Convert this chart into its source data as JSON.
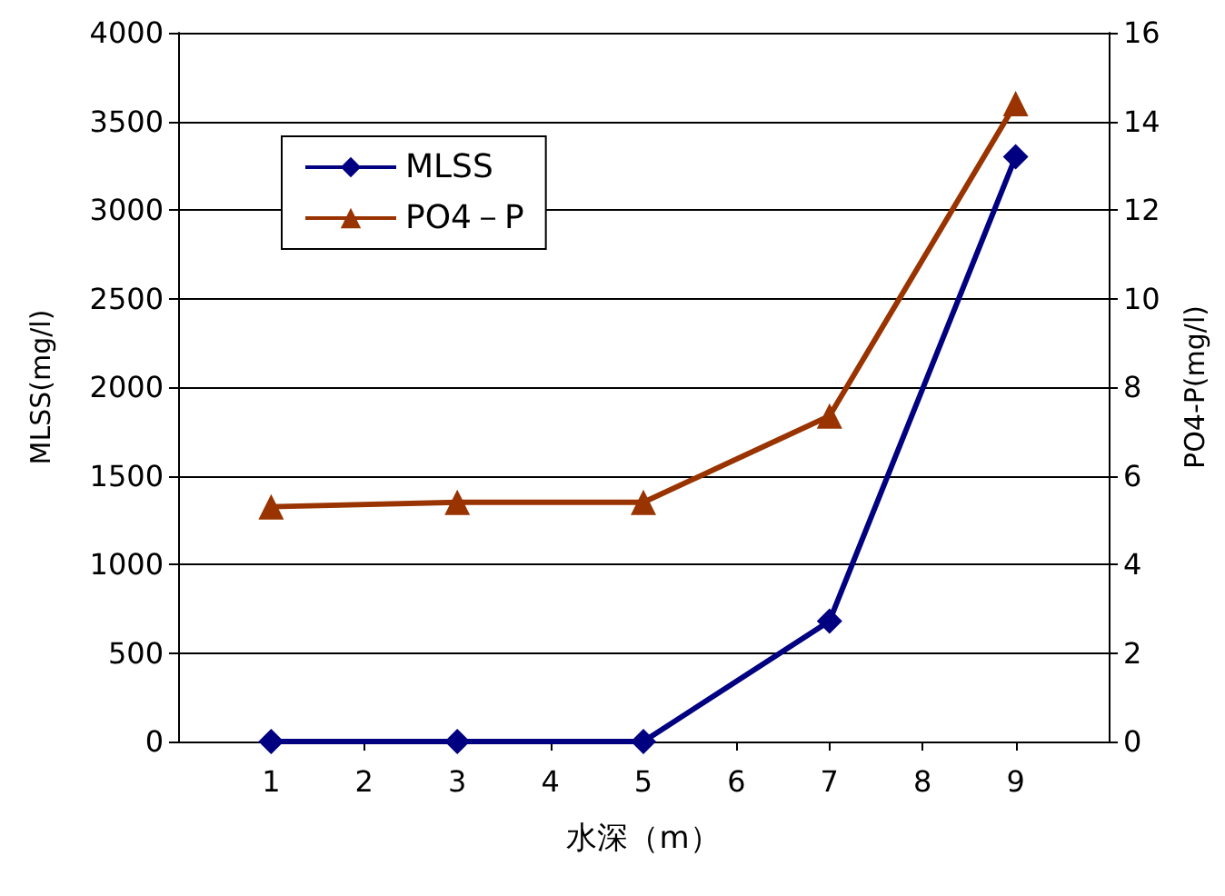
{
  "chart_data": {
    "type": "line",
    "xlabel": "水深（m）",
    "ylabel": "MLSS(mg/l)",
    "y2label": "PO4-P(mg/l)",
    "x": [
      1,
      3,
      5,
      7,
      9
    ],
    "series": [
      {
        "name": "MLSS",
        "color": "#000080",
        "marker": "diamond",
        "values": [
          0,
          0,
          0,
          680,
          3300
        ]
      },
      {
        "name": "PO4－P",
        "color": "#993300",
        "marker": "triangle",
        "axis": "y2",
        "values": [
          5.3,
          5.4,
          5.4,
          7.35,
          14.4
        ]
      }
    ],
    "xlim": [
      0,
      10
    ],
    "xticks": [
      1,
      2,
      3,
      4,
      5,
      6,
      7,
      8,
      9
    ],
    "ylim": [
      0,
      4000
    ],
    "yticks": [
      0,
      500,
      1000,
      1500,
      2000,
      2500,
      3000,
      3500,
      4000
    ],
    "y2lim": [
      0,
      16
    ],
    "y2ticks": [
      0,
      2,
      4,
      6,
      8,
      10,
      12,
      14,
      16
    ],
    "grid": "y",
    "legend": "top left"
  }
}
